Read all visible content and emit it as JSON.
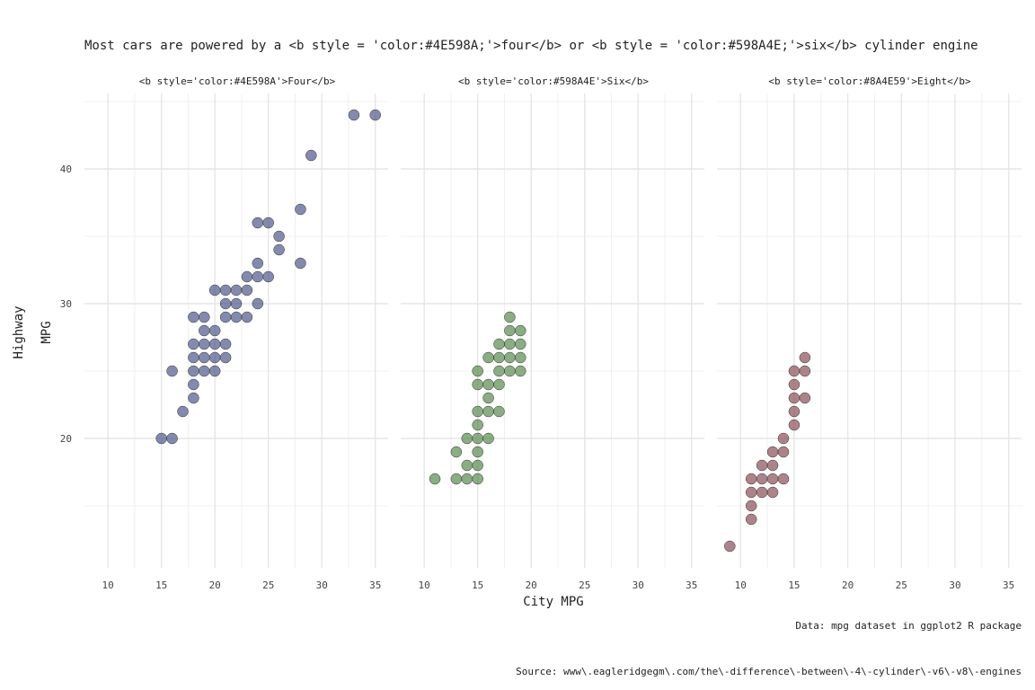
{
  "chart_data": {
    "type": "scatter",
    "title": "Most cars are powered by a <b style = 'color:#4E598A;'>four</b> or <b style = 'color:#598A4E;'>six</b> cylinder engine",
    "xlabel": "City MPG",
    "ylabel_lines": [
      "Highway",
      "MPG"
    ],
    "xlim": [
      7.8,
      36.2
    ],
    "ylim": [
      10.4,
      45.6
    ],
    "x_ticks": [
      10,
      15,
      20,
      25,
      30,
      35
    ],
    "y_ticks": [
      20,
      30,
      40
    ],
    "grid": true,
    "caption": "Data: mpg dataset in ggplot2 R package",
    "source": "Source: www\\.eagleridgegm\\.com/the\\-difference\\-between\\-4\\-cylinder\\-v6\\-v8\\-engines",
    "panels": [
      {
        "label": "<b style='color:#4E598A'>Four</b>",
        "color": "#4E598A",
        "points": [
          [
            15,
            20
          ],
          [
            16,
            20
          ],
          [
            16,
            25
          ],
          [
            17,
            22
          ],
          [
            18,
            23
          ],
          [
            18,
            24
          ],
          [
            18,
            25
          ],
          [
            18,
            26
          ],
          [
            18,
            27
          ],
          [
            18,
            29
          ],
          [
            19,
            25
          ],
          [
            19,
            26
          ],
          [
            19,
            27
          ],
          [
            19,
            28
          ],
          [
            19,
            29
          ],
          [
            20,
            25
          ],
          [
            20,
            26
          ],
          [
            20,
            27
          ],
          [
            20,
            28
          ],
          [
            20,
            31
          ],
          [
            21,
            26
          ],
          [
            21,
            27
          ],
          [
            21,
            29
          ],
          [
            21,
            30
          ],
          [
            21,
            31
          ],
          [
            22,
            29
          ],
          [
            22,
            30
          ],
          [
            22,
            31
          ],
          [
            23,
            29
          ],
          [
            23,
            31
          ],
          [
            23,
            32
          ],
          [
            24,
            30
          ],
          [
            24,
            32
          ],
          [
            24,
            33
          ],
          [
            24,
            36
          ],
          [
            25,
            32
          ],
          [
            25,
            36
          ],
          [
            26,
            34
          ],
          [
            26,
            35
          ],
          [
            28,
            33
          ],
          [
            28,
            37
          ],
          [
            29,
            41
          ],
          [
            33,
            44
          ],
          [
            35,
            44
          ]
        ]
      },
      {
        "label": "<b style='color:#598A4E'>Six</b>",
        "color": "#598A4E",
        "points": [
          [
            11,
            17
          ],
          [
            13,
            17
          ],
          [
            13,
            19
          ],
          [
            14,
            17
          ],
          [
            14,
            18
          ],
          [
            14,
            20
          ],
          [
            15,
            17
          ],
          [
            15,
            18
          ],
          [
            15,
            19
          ],
          [
            15,
            20
          ],
          [
            15,
            21
          ],
          [
            15,
            22
          ],
          [
            15,
            24
          ],
          [
            15,
            25
          ],
          [
            16,
            20
          ],
          [
            16,
            22
          ],
          [
            16,
            23
          ],
          [
            16,
            24
          ],
          [
            16,
            26
          ],
          [
            17,
            22
          ],
          [
            17,
            24
          ],
          [
            17,
            25
          ],
          [
            17,
            26
          ],
          [
            17,
            27
          ],
          [
            18,
            25
          ],
          [
            18,
            26
          ],
          [
            18,
            27
          ],
          [
            18,
            28
          ],
          [
            18,
            29
          ],
          [
            19,
            25
          ],
          [
            19,
            26
          ],
          [
            19,
            27
          ],
          [
            19,
            28
          ]
        ]
      },
      {
        "label": "<b style='color:#8A4E59'>Eight</b>",
        "color": "#8A4E59",
        "points": [
          [
            9,
            12
          ],
          [
            11,
            14
          ],
          [
            11,
            15
          ],
          [
            11,
            16
          ],
          [
            11,
            17
          ],
          [
            12,
            16
          ],
          [
            12,
            17
          ],
          [
            12,
            18
          ],
          [
            13,
            16
          ],
          [
            13,
            17
          ],
          [
            13,
            18
          ],
          [
            13,
            19
          ],
          [
            14,
            17
          ],
          [
            14,
            19
          ],
          [
            14,
            20
          ],
          [
            15,
            21
          ],
          [
            15,
            22
          ],
          [
            15,
            23
          ],
          [
            15,
            24
          ],
          [
            15,
            25
          ],
          [
            16,
            23
          ],
          [
            16,
            25
          ],
          [
            16,
            26
          ]
        ]
      }
    ]
  }
}
